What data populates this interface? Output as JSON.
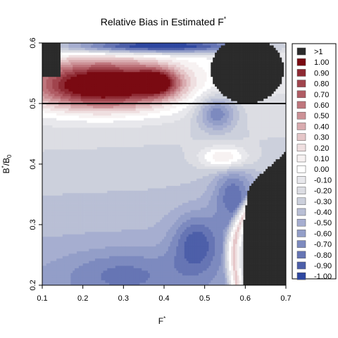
{
  "chart_data": {
    "type": "heatmap",
    "title": "Relative Bias in Estimated F",
    "title_superscript": "*",
    "xlabel": "F",
    "xlabel_superscript": "*",
    "ylabel_main": "B",
    "ylabel_superscript": "*",
    "ylabel_rest": "/B",
    "ylabel_subscript": "0",
    "xlim": [
      0.1,
      0.7
    ],
    "ylim": [
      0.2,
      0.6
    ],
    "xticks": [
      "0.1",
      "0.2",
      "0.3",
      "0.4",
      "0.5",
      "0.6",
      "0.7"
    ],
    "yticks": [
      "0.2",
      "0.3",
      "0.4",
      "0.5",
      "0.6"
    ],
    "reference_line_y": 0.5,
    "legend_position": "right",
    "legend": [
      {
        "label": ">1",
        "color": "#2b2b2b"
      },
      {
        "label": "1.00",
        "color": "#7a0a12"
      },
      {
        "label": "0.90",
        "color": "#8e2a33"
      },
      {
        "label": "0.80",
        "color": "#a0444d"
      },
      {
        "label": "0.70",
        "color": "#b05c64"
      },
      {
        "label": "0.60",
        "color": "#bf767d"
      },
      {
        "label": "0.50",
        "color": "#cc9196"
      },
      {
        "label": "0.40",
        "color": "#d9abaf"
      },
      {
        "label": "0.30",
        "color": "#e5c6c8"
      },
      {
        "label": "0.20",
        "color": "#efdfe0"
      },
      {
        "label": "0.10",
        "color": "#f7f2f2"
      },
      {
        "label": "0.00",
        "color": "#ffffff"
      },
      {
        "label": "-0.10",
        "color": "#e8e8ec"
      },
      {
        "label": "-0.20",
        "color": "#dcdde3"
      },
      {
        "label": "-0.30",
        "color": "#ccd0dc"
      },
      {
        "label": "-0.40",
        "color": "#b9bfd5"
      },
      {
        "label": "-0.50",
        "color": "#a6aed0"
      },
      {
        "label": "-0.60",
        "color": "#939ec8"
      },
      {
        "label": "-0.70",
        "color": "#7d8abf"
      },
      {
        "label": "-0.80",
        "color": "#6675b4"
      },
      {
        "label": "-0.90",
        "color": "#4d5fa9"
      },
      {
        "label": "-1.00",
        "color": "#2e47a0"
      }
    ]
  }
}
